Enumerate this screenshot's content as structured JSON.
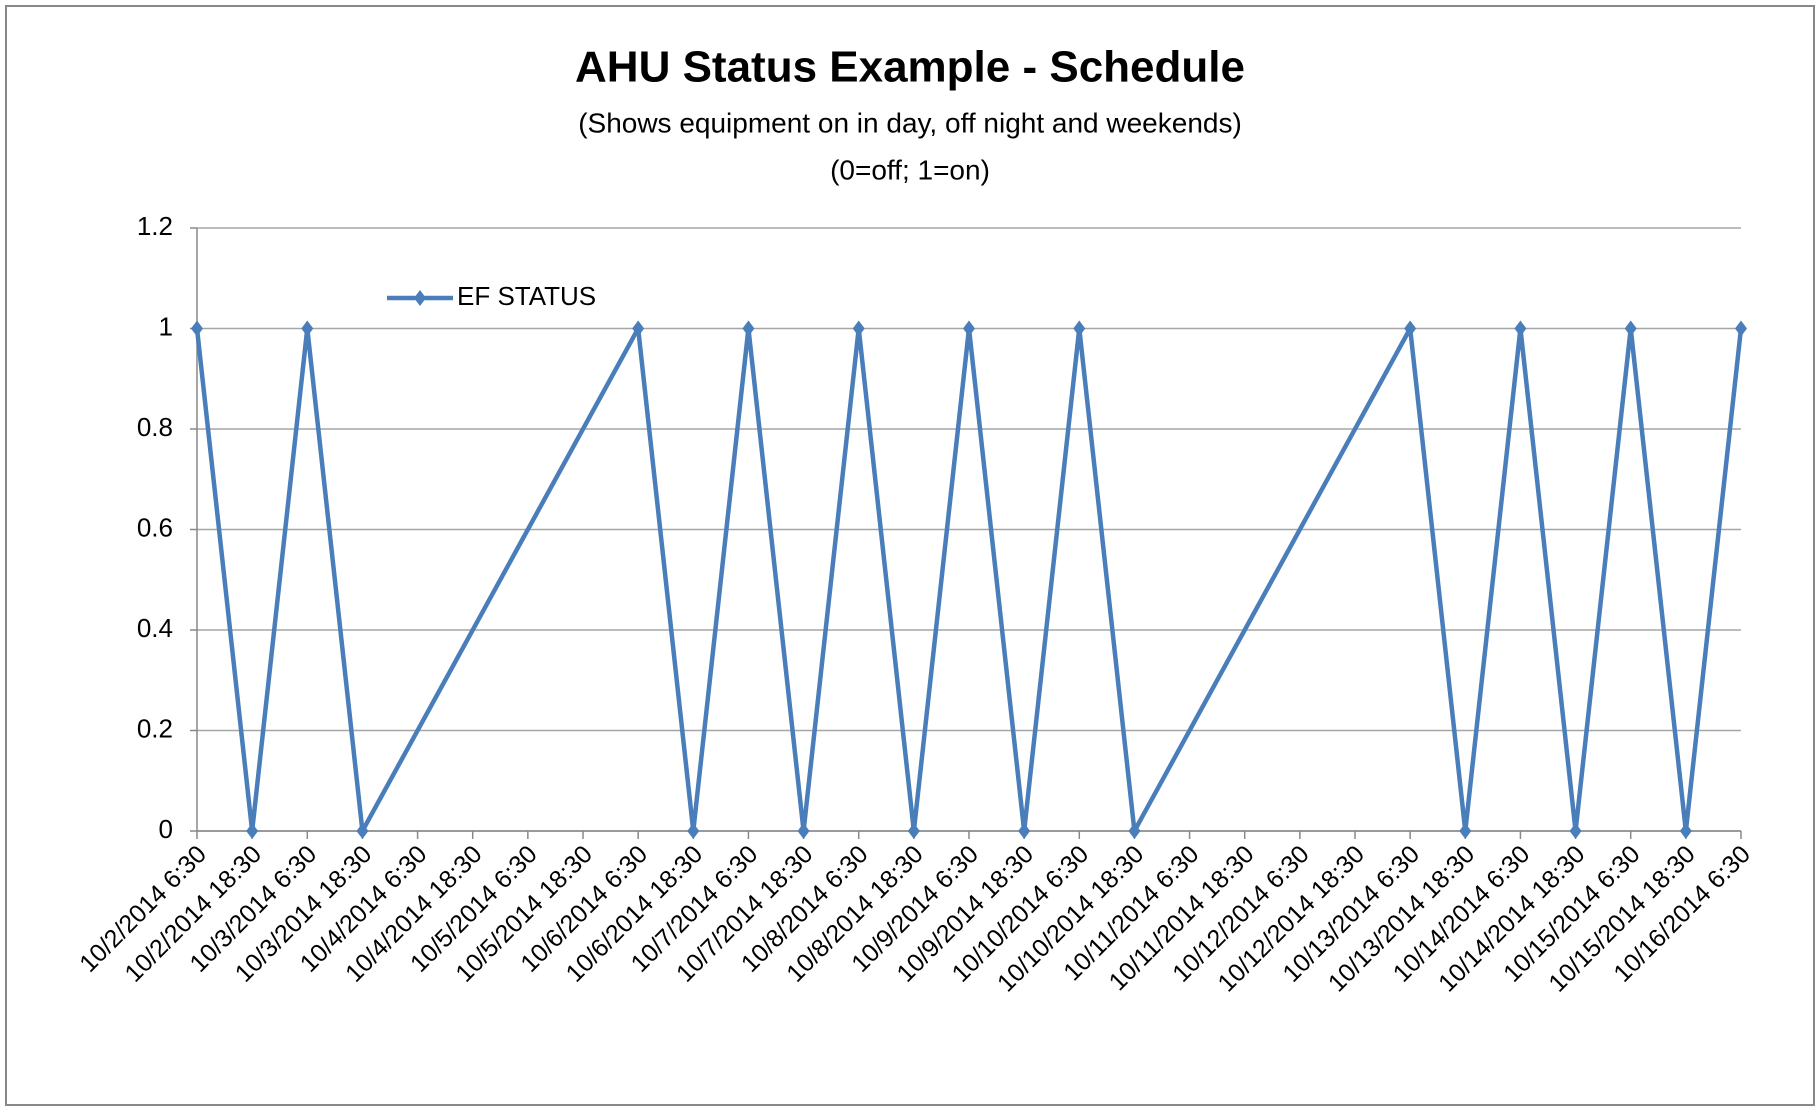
{
  "chart_data": {
    "type": "line",
    "title": "AHU Status Example - Schedule",
    "subtitle": "(Shows equipment on in day, off night and weekends)",
    "annotation": "(0=off; 1=on)",
    "categories": [
      "10/2/2014 6:30",
      "10/2/2014 18:30",
      "10/3/2014 6:30",
      "10/3/2014 18:30",
      "10/4/2014 6:30",
      "10/4/2014 18:30",
      "10/5/2014 6:30",
      "10/5/2014 18:30",
      "10/6/2014 6:30",
      "10/6/2014 18:30",
      "10/7/2014 6:30",
      "10/7/2014 18:30",
      "10/8/2014 6:30",
      "10/8/2014 18:30",
      "10/9/2014 6:30",
      "10/9/2014 18:30",
      "10/10/2014 6:30",
      "10/10/2014 18:30",
      "10/11/2014 6:30",
      "10/11/2014 18:30",
      "10/12/2014 6:30",
      "10/12/2014 18:30",
      "10/13/2014 6:30",
      "10/13/2014 18:30",
      "10/14/2014 6:30",
      "10/14/2014 18:30",
      "10/15/2014 6:30",
      "10/15/2014 18:30",
      "10/16/2014 6:30"
    ],
    "series": [
      {
        "name": "EF STATUS",
        "color": "#4a7ebb",
        "values": [
          1,
          0,
          1,
          0,
          null,
          null,
          null,
          null,
          1,
          0,
          1,
          0,
          1,
          0,
          1,
          0,
          1,
          0,
          null,
          null,
          null,
          null,
          1,
          0,
          1,
          0,
          1,
          0,
          1
        ]
      }
    ],
    "connect_empty_points": true,
    "ylim": [
      0,
      1.2
    ],
    "yticks": [
      0,
      0.2,
      0.4,
      0.6,
      0.8,
      1,
      1.2
    ],
    "grid": true,
    "legend": "upper-left"
  }
}
